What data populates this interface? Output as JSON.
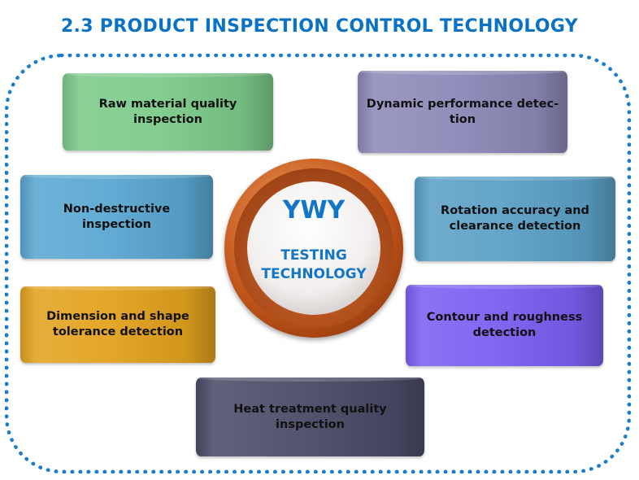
{
  "title": "2.3 PRODUCT INSPECTION CONTROL TECHNOLOGY",
  "center": {
    "brand": "YWY",
    "line1": "TESTING",
    "line2": "TECHNOLOGY"
  },
  "items": [
    {
      "label": "Raw material quality inspection",
      "color": "#7ccb8a"
    },
    {
      "label": "Dynamic performance detec- tion",
      "color": "#8d89b8"
    },
    {
      "label": "Non-destructive inspection",
      "color": "#5aa7d2"
    },
    {
      "label": "Rotation accuracy and clearance detection",
      "color": "#5ba0c6"
    },
    {
      "label": "Dimension and shape tolerance detection",
      "color": "#e2a21e"
    },
    {
      "label": "Contour and roughness detection",
      "color": "#7c5ef2"
    },
    {
      "label": "Heat treatment quality inspection",
      "color": "#4b4b68"
    }
  ],
  "colors": {
    "accent": "#0a72c4",
    "ring": "#c2561a"
  }
}
